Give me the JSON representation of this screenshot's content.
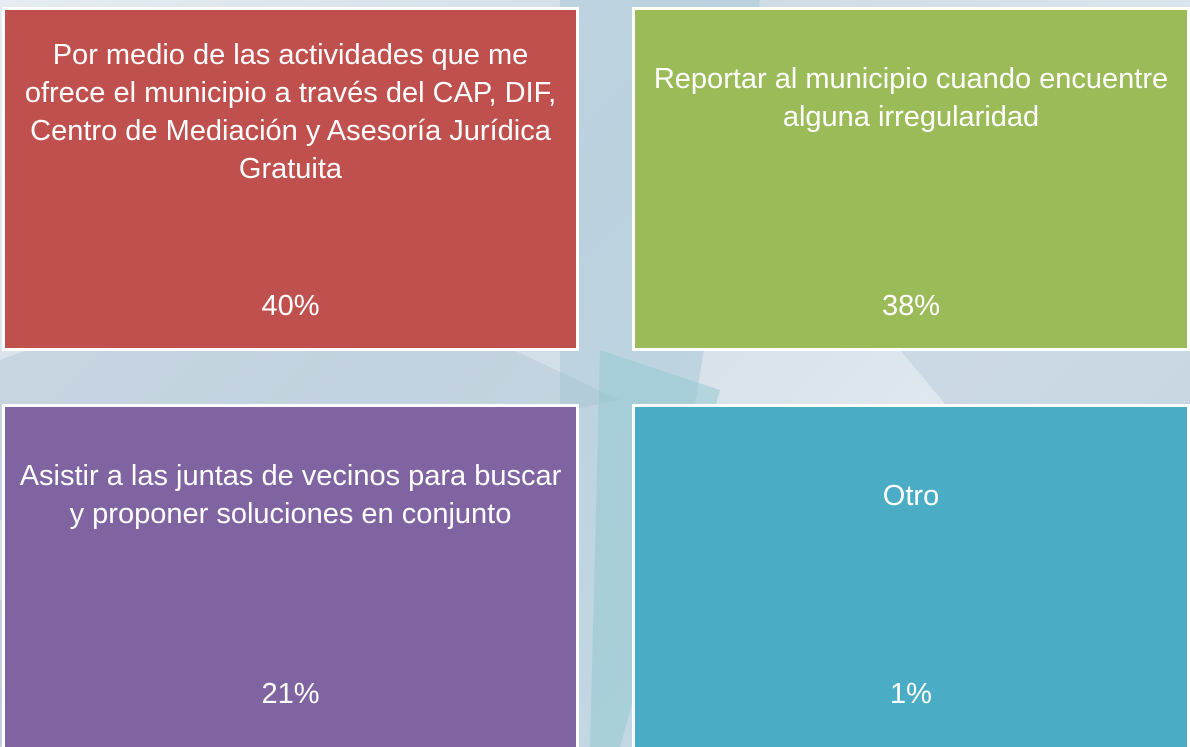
{
  "boxes": [
    {
      "text": "Por medio de las actividades que me ofrece el municipio a través del CAP, DIF, Centro de Mediación y Asesoría Jurídica Gratuita",
      "percent": "40%"
    },
    {
      "text": "Reportar al municipio cuando encuentre alguna irregularidad",
      "percent": "38%"
    },
    {
      "text": "Asistir a las juntas de vecinos para buscar  y proponer soluciones en conjunto",
      "percent": "21%"
    },
    {
      "text": "Otro",
      "percent": "1%"
    }
  ]
}
